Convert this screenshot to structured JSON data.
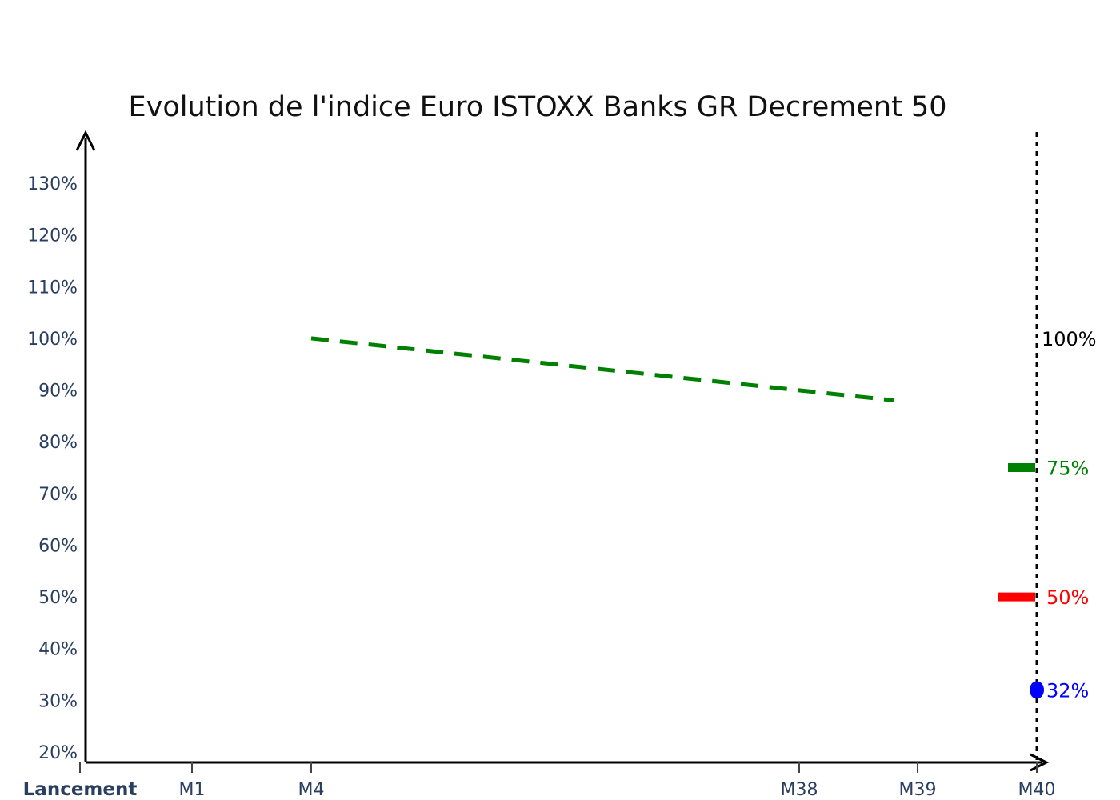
{
  "chart_data": {
    "type": "line",
    "title": "Evolution de l'indice Euro ISTOXX Banks GR Decrement 50",
    "xlabel": "",
    "ylabel": "",
    "x_ticks": [
      {
        "label": "Lancement",
        "pos": 0,
        "bold": true
      },
      {
        "label": "M1",
        "pos": 1,
        "bold": false
      },
      {
        "label": "M4",
        "pos": 4,
        "bold": false
      },
      {
        "label": "M38",
        "pos": 38,
        "bold": false
      },
      {
        "label": "M39",
        "pos": 39,
        "bold": false
      },
      {
        "label": "M40",
        "pos": 40,
        "bold": false
      }
    ],
    "y_ticks": [
      {
        "label": "20%",
        "value": 20
      },
      {
        "label": "30%",
        "value": 30
      },
      {
        "label": "40%",
        "value": 40
      },
      {
        "label": "50%",
        "value": 50
      },
      {
        "label": "60%",
        "value": 60
      },
      {
        "label": "70%",
        "value": 70
      },
      {
        "label": "80%",
        "value": 80
      },
      {
        "label": "90%",
        "value": 90
      },
      {
        "label": "100%",
        "value": 100
      },
      {
        "label": "110%",
        "value": 110
      },
      {
        "label": "120%",
        "value": 120
      },
      {
        "label": "130%",
        "value": 130
      }
    ],
    "ylim": [
      20,
      130
    ],
    "series": [
      {
        "color": "#008000",
        "style": "dashed",
        "points": [
          {
            "x": 4,
            "y": 100
          },
          {
            "x": 38.8,
            "y": 88
          }
        ]
      }
    ],
    "reference_line": {
      "x": 40,
      "style": "dotted",
      "color": "#000000"
    },
    "markers": [
      {
        "value": 100,
        "label": "100%",
        "color": "#000000",
        "shape": "none"
      },
      {
        "value": 75,
        "label": "75%",
        "color": "#008000",
        "shape": "bar"
      },
      {
        "value": 50,
        "label": "50%",
        "color": "#ff0000",
        "shape": "bar"
      },
      {
        "value": 32,
        "label": "32%",
        "color": "#0000ff",
        "shape": "dot"
      }
    ]
  }
}
